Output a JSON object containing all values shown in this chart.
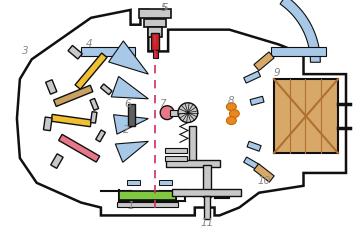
{
  "blue": "#a8c8e8",
  "yellow": "#f0c030",
  "tan": "#c8a060",
  "pink": "#e87888",
  "orange": "#e88820",
  "green": "#80c840",
  "gray": "#a0a0a0",
  "lgray": "#c8c8c8",
  "dgray": "#606060",
  "wood": "#d8a868",
  "red": "#cc2222",
  "black": "#101010",
  "white": "#ffffff",
  "dashed": "#cc3060",
  "label_color": "#888888"
}
